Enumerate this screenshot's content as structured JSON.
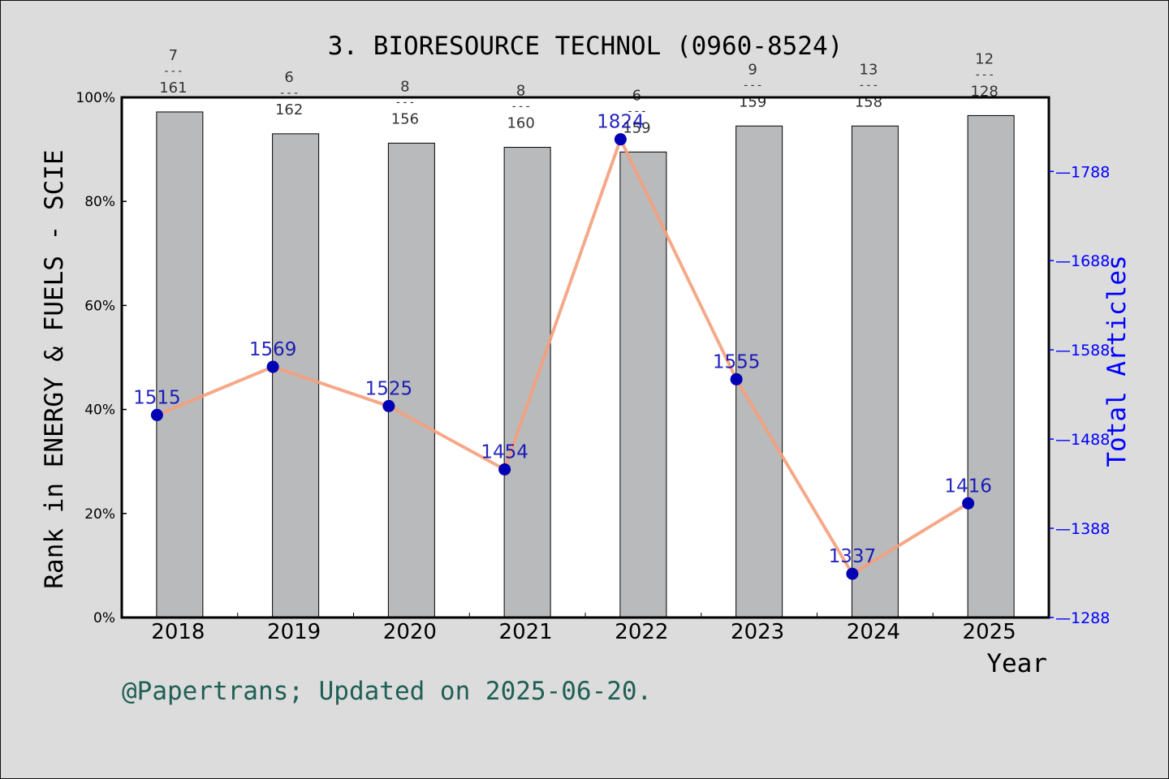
{
  "chart_data": {
    "type": "bar",
    "title": "3. BIORESOURCE TECHNOL (0960-8524)",
    "xlabel": "Year",
    "ylabel": "Rank in ENERGY & FUELS - SCIE",
    "y2label": "Total Articles",
    "categories": [
      "2018",
      "2019",
      "2020",
      "2021",
      "2022",
      "2023",
      "2024",
      "2025"
    ],
    "bar_values_percent": [
      97.2,
      93.0,
      91.2,
      90.4,
      89.5,
      94.5,
      94.5,
      96.5
    ],
    "rank_fractions": [
      {
        "rank": "7",
        "total": "161"
      },
      {
        "rank": "6",
        "total": "162"
      },
      {
        "rank": "8",
        "total": "156"
      },
      {
        "rank": "8",
        "total": "160"
      },
      {
        "rank": "6",
        "total": "159"
      },
      {
        "rank": "9",
        "total": "159"
      },
      {
        "rank": "13",
        "total": "158"
      },
      {
        "rank": "12",
        "total": "128"
      }
    ],
    "line_values": [
      1515,
      1569,
      1525,
      1454,
      1824,
      1555,
      1337,
      1416
    ],
    "line_labels": [
      "1515",
      "1569",
      "1525",
      "1454",
      "1824",
      "1555",
      "1337",
      "1416"
    ],
    "ylim": [
      0,
      100
    ],
    "yticks": [
      "0%",
      "20%",
      "40%",
      "60%",
      "80%",
      "100%"
    ],
    "y2lim": [
      1288,
      1871
    ],
    "y2ticks": [
      "1288",
      "1388",
      "1488",
      "1588",
      "1688",
      "1788"
    ],
    "colors": {
      "bar": "#b9babc",
      "line": "#f4a07c",
      "marker": "#0000b4",
      "axis_right": "#0000ff",
      "footer": "#1f5f55",
      "background": "#dcdcdc",
      "plot_background": "#ffffff"
    }
  },
  "footer": "@Papertrans; Updated on 2025-06-20."
}
